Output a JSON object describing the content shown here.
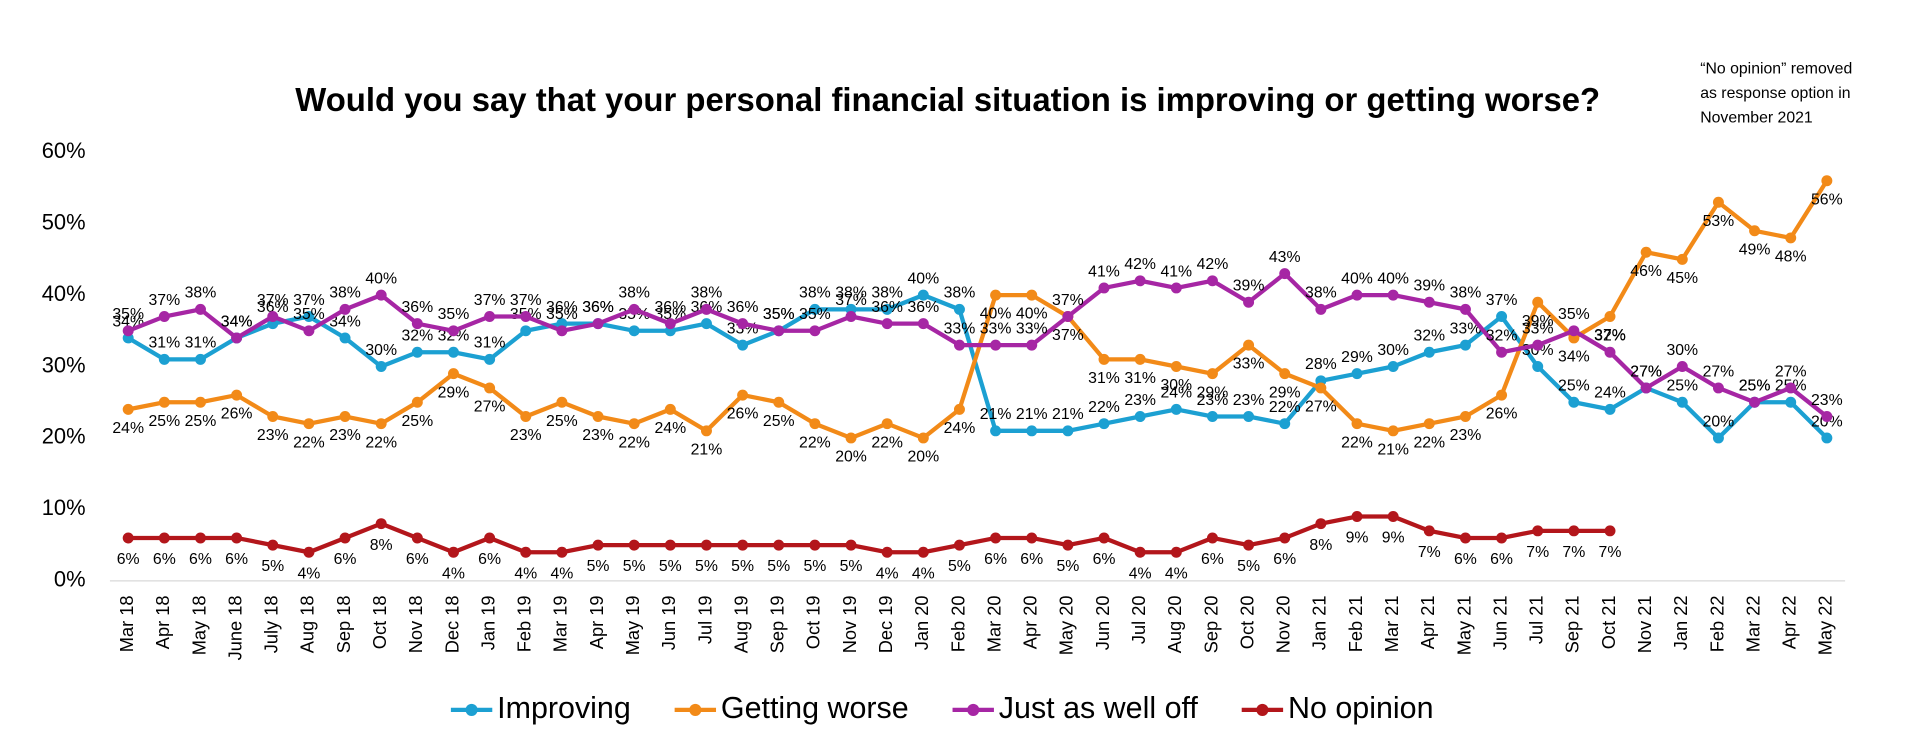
{
  "chart_data": {
    "type": "line",
    "title": "Would you say that your personal financial situation is improving or getting worse?",
    "annotation": [
      "“No opinion” removed",
      "as response option in",
      "November 2021"
    ],
    "categories": [
      "Mar 18",
      "Apr 18",
      "May 18",
      "June 18",
      "July 18",
      "Aug 18",
      "Sep 18",
      "Oct 18",
      "Nov 18",
      "Dec 18",
      "Jan 19",
      "Feb 19",
      "Mar 19",
      "Apr 19",
      "May 19",
      "Jun 19",
      "Jul 19",
      "Aug 19",
      "Sep 19",
      "Oct 19",
      "Nov 19",
      "Dec 19",
      "Jan 20",
      "Feb 20",
      "Mar 20",
      "Apr 20",
      "May 20",
      "Jun 20",
      "Jul 20",
      "Aug 20",
      "Sep 20",
      "Oct 20",
      "Nov 20",
      "Jan 21",
      "Feb 21",
      "Mar 21",
      "Apr 21",
      "May 21",
      "Jun 21",
      "Jul 21",
      "Sep 21",
      "Oct 21",
      "Nov 21",
      "Jan 22",
      "Feb 22",
      "Mar 22",
      "Apr 22",
      "May 22"
    ],
    "series": [
      {
        "name": "Improving",
        "color": "#1ca0d2",
        "values": [
          34,
          31,
          31,
          34,
          36,
          37,
          34,
          30,
          32,
          32,
          31,
          35,
          36,
          36,
          35,
          35,
          36,
          33,
          35,
          38,
          38,
          38,
          40,
          38,
          21,
          21,
          21,
          22,
          23,
          24,
          23,
          23,
          22,
          28,
          29,
          30,
          32,
          33,
          37,
          30,
          25,
          24,
          27,
          25,
          20,
          25,
          25,
          20
        ],
        "value_labels": [
          "34%",
          "31%",
          "31%",
          "34%",
          "36%",
          "37%",
          "34%",
          "30%",
          "32%",
          "32%",
          "31%",
          "35%",
          "36%",
          "36%",
          "35%",
          "35%",
          "36%",
          "33%",
          "35%",
          "38%",
          "38%",
          "38%",
          "40%",
          "38%",
          "21%",
          "21%",
          "21%",
          "22%",
          "23%",
          "24%",
          "23%",
          "23%",
          "22%",
          "28%",
          "29%",
          "30%",
          "32%",
          "33%",
          "37%",
          "30%",
          "25%",
          "24%",
          "27%",
          "25%",
          "20%",
          "25%",
          "25%",
          "20%"
        ]
      },
      {
        "name": "Getting worse",
        "color": "#f28a18",
        "values": [
          24,
          25,
          25,
          26,
          23,
          22,
          23,
          22,
          25,
          29,
          27,
          23,
          25,
          23,
          22,
          24,
          21,
          26,
          25,
          22,
          20,
          22,
          20,
          24,
          40,
          40,
          37,
          31,
          31,
          30,
          29,
          33,
          29,
          27,
          22,
          21,
          22,
          23,
          26,
          39,
          34,
          37,
          46,
          45,
          53,
          49,
          48,
          56
        ],
        "value_labels": [
          "24%",
          "25%",
          "25%",
          "26%",
          "23%",
          "22%",
          "23%",
          "22%",
          "25%",
          "29%",
          "27%",
          "23%",
          "25%",
          "23%",
          "22%",
          "24%",
          "21%",
          "26%",
          "25%",
          "22%",
          "20%",
          "22%",
          "20%",
          "24%",
          "40%",
          "40%",
          "37%",
          "31%",
          "31%",
          "30%",
          "29%",
          "33%",
          "29%",
          "27%",
          "22%",
          "21%",
          "22%",
          "23%",
          "26%",
          "39%",
          "34%",
          "37%",
          "46%",
          "45%",
          "53%",
          "49%",
          "48%",
          "56%"
        ]
      },
      {
        "name": "Just as well off",
        "color": "#a626a4",
        "values": [
          35,
          37,
          38,
          34,
          37,
          35,
          38,
          40,
          36,
          35,
          37,
          37,
          35,
          36,
          38,
          36,
          38,
          36,
          35,
          35,
          37,
          36,
          36,
          33,
          33,
          33,
          37,
          41,
          42,
          41,
          42,
          39,
          43,
          38,
          40,
          40,
          39,
          38,
          32,
          33,
          35,
          32,
          27,
          30,
          27,
          25,
          27,
          23
        ],
        "value_labels": [
          "35%",
          "37%",
          "38%",
          "34%",
          "37%",
          "35%",
          "38%",
          "40%",
          "36%",
          "35%",
          "37%",
          "37%",
          "35%",
          "36%",
          "38%",
          "36%",
          "38%",
          "36%",
          "35%",
          "35%",
          "37%",
          "36%",
          "36%",
          "33%",
          "33%",
          "33%",
          "37%",
          "41%",
          "42%",
          "41%",
          "42%",
          "39%",
          "43%",
          "38%",
          "40%",
          "40%",
          "39%",
          "38%",
          "32%",
          "33%",
          "35%",
          "32%",
          "27%",
          "30%",
          "27%",
          "25%",
          "27%",
          "23%"
        ]
      },
      {
        "name": "No opinion",
        "color": "#b3161b",
        "values": [
          6,
          6,
          6,
          6,
          5,
          4,
          6,
          8,
          6,
          4,
          6,
          4,
          4,
          5,
          5,
          5,
          5,
          5,
          5,
          5,
          5,
          4,
          4,
          5,
          6,
          6,
          5,
          6,
          4,
          4,
          6,
          5,
          6,
          8,
          9,
          9,
          7,
          6,
          6,
          7,
          7,
          7,
          null,
          null,
          null,
          null,
          null,
          null
        ],
        "value_labels": [
          "6%",
          "6%",
          "6%",
          "6%",
          "5%",
          "4%",
          "6%",
          "8%",
          "6%",
          "4%",
          "6%",
          "4%",
          "4%",
          "5%",
          "5%",
          "5%",
          "5%",
          "5%",
          "5%",
          "5%",
          "5%",
          "4%",
          "4%",
          "5%",
          "6%",
          "6%",
          "5%",
          "6%",
          "4%",
          "4%",
          "6%",
          "5%",
          "6%",
          "8%",
          "9%",
          "9%",
          "7%",
          "6%",
          "6%",
          "7%",
          "7%",
          "7%",
          null,
          null,
          null,
          null,
          null,
          null
        ]
      }
    ],
    "ylim": [
      0,
      60
    ],
    "yticks": [
      {
        "value": 0,
        "label": "0%"
      },
      {
        "value": 10,
        "label": "10%"
      },
      {
        "value": 20,
        "label": "20%"
      },
      {
        "value": 30,
        "label": "30%"
      },
      {
        "value": 40,
        "label": "40%"
      },
      {
        "value": 50,
        "label": "50%"
      },
      {
        "value": 60,
        "label": "60%"
      }
    ],
    "legend": "bottom"
  }
}
